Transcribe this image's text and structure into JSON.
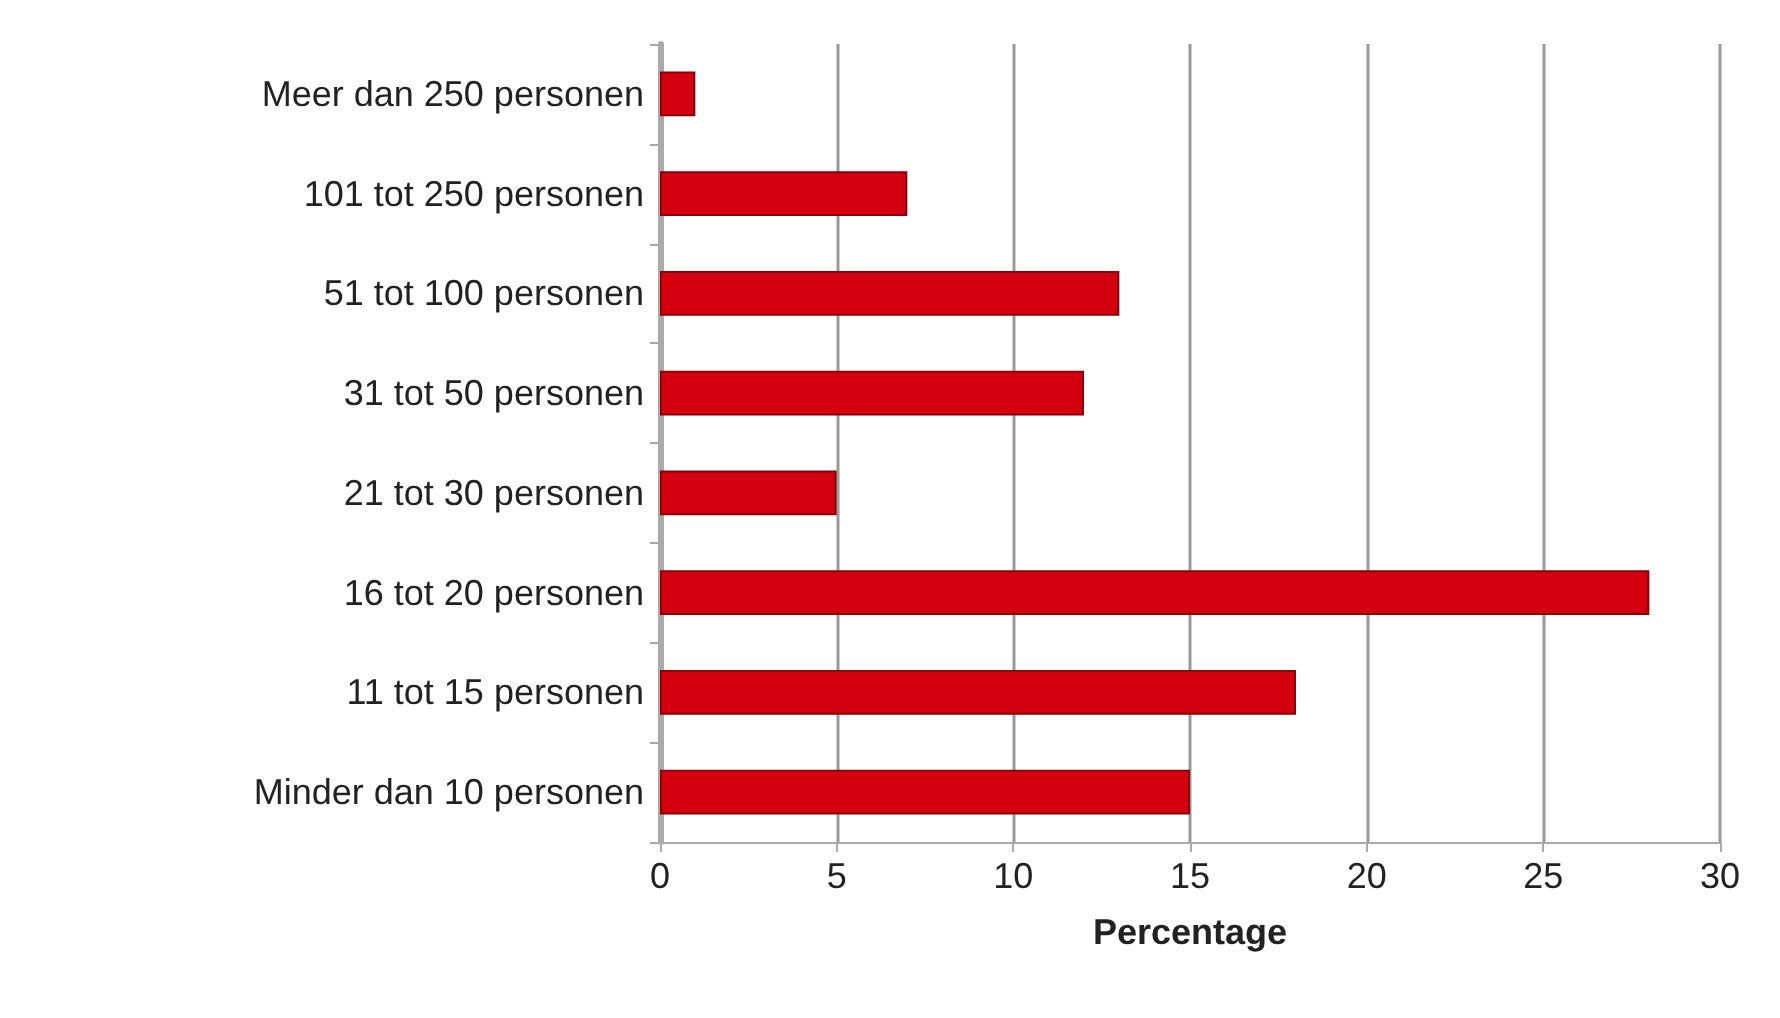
{
  "chart_data": {
    "type": "bar",
    "orientation": "horizontal",
    "xlabel": "Percentage",
    "categories": [
      "Meer dan 250 personen",
      "101 tot 250 personen",
      "51 tot 100 personen",
      "31 tot 50 personen",
      "21 tot 30 personen",
      "16 tot 20 personen",
      "11 tot 15 personen",
      "Minder dan 10 personen"
    ],
    "values": [
      1,
      7,
      13,
      12,
      5,
      28,
      18,
      15
    ],
    "color": "#d40010",
    "xlim": [
      0,
      30
    ],
    "xticks": [
      0,
      5,
      10,
      15,
      20,
      25,
      30
    ],
    "grid": "x"
  }
}
